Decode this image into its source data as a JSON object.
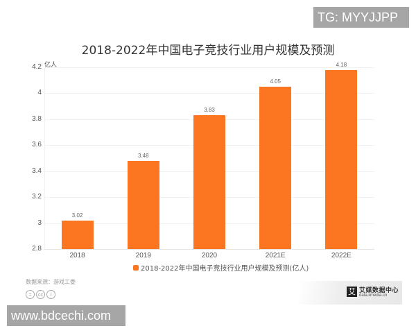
{
  "watermarks": {
    "top_right": "TG: MYYJJPP",
    "bottom_left": "www.bdcechi.com"
  },
  "chart_data": {
    "type": "bar",
    "title": "2018-2022年中国电子竞技行业用户规模及预测",
    "categories": [
      "2018",
      "2019",
      "2020",
      "2021E",
      "2022E"
    ],
    "series": [
      {
        "name": "2018-2022年中国电子竞技行业用户规模及预测(亿人)",
        "values": [
          3.02,
          3.48,
          3.83,
          4.05,
          4.18
        ],
        "color": "#fc7520"
      }
    ],
    "value_labels": [
      "3.02",
      "3.48",
      "3.83",
      "4.05",
      "4.18"
    ],
    "xlabel": "",
    "ylabel": "亿人",
    "ylim": [
      2.8,
      4.2
    ],
    "yticks": [
      "4.2",
      "4",
      "3.8",
      "3.6",
      "3.4",
      "3.2",
      "3",
      "2.8"
    ],
    "grid": true,
    "legend_position": "bottom"
  },
  "footer": {
    "source": "数据来源：游戏工委",
    "cc_icons": [
      "=",
      "cc",
      "i"
    ],
    "brand_name": "艾媒数据中心",
    "brand_url": "data.iimedia.cn",
    "brand_logo": "艾"
  }
}
